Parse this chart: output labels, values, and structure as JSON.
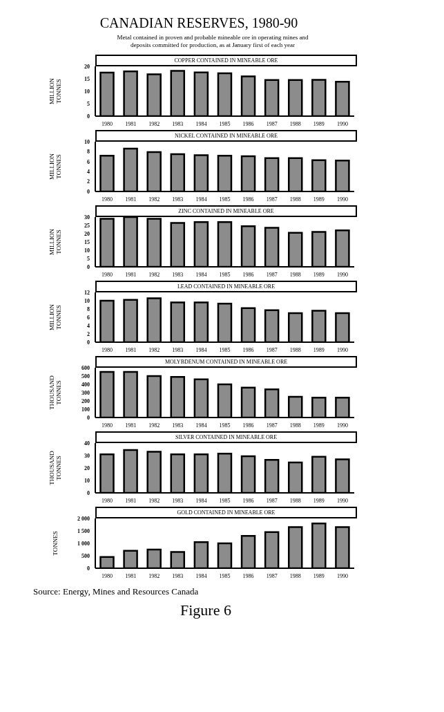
{
  "chart_data": [
    {
      "type": "bar",
      "title": "COPPER CONTAINED IN MINEABLE ORE",
      "annotations": [
        "CANADIAN RESERVES, 1980-90"
      ],
      "subtitle": "Metal contained in proven and probable mineable ore in operating mines and deposits committed for production, as at January first of each year",
      "ylabel": "MILLION TONNES",
      "categories": [
        "1980",
        "1981",
        "1982",
        "1983",
        "1984",
        "1985",
        "1986",
        "1987",
        "1988",
        "1989",
        "1990"
      ],
      "values": [
        17.5,
        18,
        16.8,
        18.2,
        17.6,
        17.2,
        16,
        14.5,
        14.5,
        14.6,
        13.8
      ],
      "color": "#8c8c8c",
      "ylim": [
        0,
        20
      ],
      "yticks": [
        0,
        5,
        10,
        15,
        20
      ]
    },
    {
      "type": "bar",
      "title": "NICKEL CONTAINED IN MINEABLE ORE",
      "ylabel": "MILLION TONNES",
      "categories": [
        "1980",
        "1981",
        "1982",
        "1983",
        "1984",
        "1985",
        "1986",
        "1987",
        "1988",
        "1989",
        "1990"
      ],
      "values": [
        7.2,
        8.6,
        7.9,
        7.5,
        7.3,
        7.2,
        7.1,
        6.7,
        6.7,
        6.3,
        6.2
      ],
      "color": "#8c8c8c",
      "ylim": [
        0,
        10
      ],
      "yticks": [
        0,
        2,
        4,
        6,
        8,
        10
      ]
    },
    {
      "type": "bar",
      "title": "ZINC CONTAINED IN MINEABLE ORE",
      "ylabel": "MILLION TONNES",
      "categories": [
        "1980",
        "1981",
        "1982",
        "1983",
        "1984",
        "1985",
        "1986",
        "1987",
        "1988",
        "1989",
        "1990"
      ],
      "values": [
        29,
        30,
        29,
        26.5,
        27,
        27,
        24.5,
        23.5,
        20.5,
        21,
        22
      ],
      "color": "#8c8c8c",
      "ylim": [
        0,
        30
      ],
      "yticks": [
        0,
        5,
        10,
        15,
        20,
        25,
        30
      ]
    },
    {
      "type": "bar",
      "title": "LEAD CONTAINED IN MINEABLE ORE",
      "ylabel": "MILLION TONNES",
      "categories": [
        "1980",
        "1981",
        "1982",
        "1983",
        "1984",
        "1985",
        "1986",
        "1987",
        "1988",
        "1989",
        "1990"
      ],
      "values": [
        10,
        10.2,
        10.6,
        9.6,
        9.6,
        9.3,
        8.2,
        7.7,
        7,
        7.6,
        7
      ],
      "color": "#8c8c8c",
      "ylim": [
        0,
        12
      ],
      "yticks": [
        0,
        2,
        4,
        6,
        8,
        10,
        12
      ]
    },
    {
      "type": "bar",
      "title": "MOLYBDENUM CONTAINED IN MINEABLE ORE",
      "ylabel": "THOUSAND TONNES",
      "categories": [
        "1980",
        "1981",
        "1982",
        "1983",
        "1984",
        "1985",
        "1986",
        "1987",
        "1988",
        "1989",
        "1990"
      ],
      "values": [
        550,
        550,
        500,
        490,
        460,
        400,
        360,
        340,
        250,
        240,
        240
      ],
      "color": "#8c8c8c",
      "ylim": [
        0,
        600
      ],
      "yticks": [
        0,
        100,
        200,
        300,
        400,
        500,
        600
      ]
    },
    {
      "type": "bar",
      "title": "SILVER CONTAINED IN MINEABLE ORE",
      "ylabel": "THOUSAND TONNES",
      "categories": [
        "1980",
        "1981",
        "1982",
        "1983",
        "1984",
        "1985",
        "1986",
        "1987",
        "1988",
        "1989",
        "1990"
      ],
      "values": [
        31,
        34.5,
        33,
        31,
        31,
        31.5,
        29.5,
        26.5,
        24.5,
        29,
        27
      ],
      "color": "#8c8c8c",
      "ylim": [
        0,
        40
      ],
      "yticks": [
        0,
        10,
        20,
        30,
        40
      ]
    },
    {
      "type": "bar",
      "title": "GOLD CONTAINED IN MINEABLE ORE",
      "ylabel": "TONNES",
      "categories": [
        "1980",
        "1981",
        "1982",
        "1983",
        "1984",
        "1985",
        "1986",
        "1987",
        "1988",
        "1989",
        "1990"
      ],
      "values": [
        450,
        700,
        750,
        650,
        1050,
        1000,
        1300,
        1450,
        1650,
        1800,
        1650
      ],
      "color": "#8c8c8c",
      "ylim": [
        0,
        2000
      ],
      "yticks": [
        0,
        500,
        {
          "value": 1000,
          "label": "1 000"
        },
        {
          "value": 1500,
          "label": "1 500"
        },
        {
          "value": 2000,
          "label": "2 000"
        }
      ],
      "annotations": [
        "Source: Energy, Mines and Resources Canada",
        "Figure 6"
      ]
    }
  ]
}
